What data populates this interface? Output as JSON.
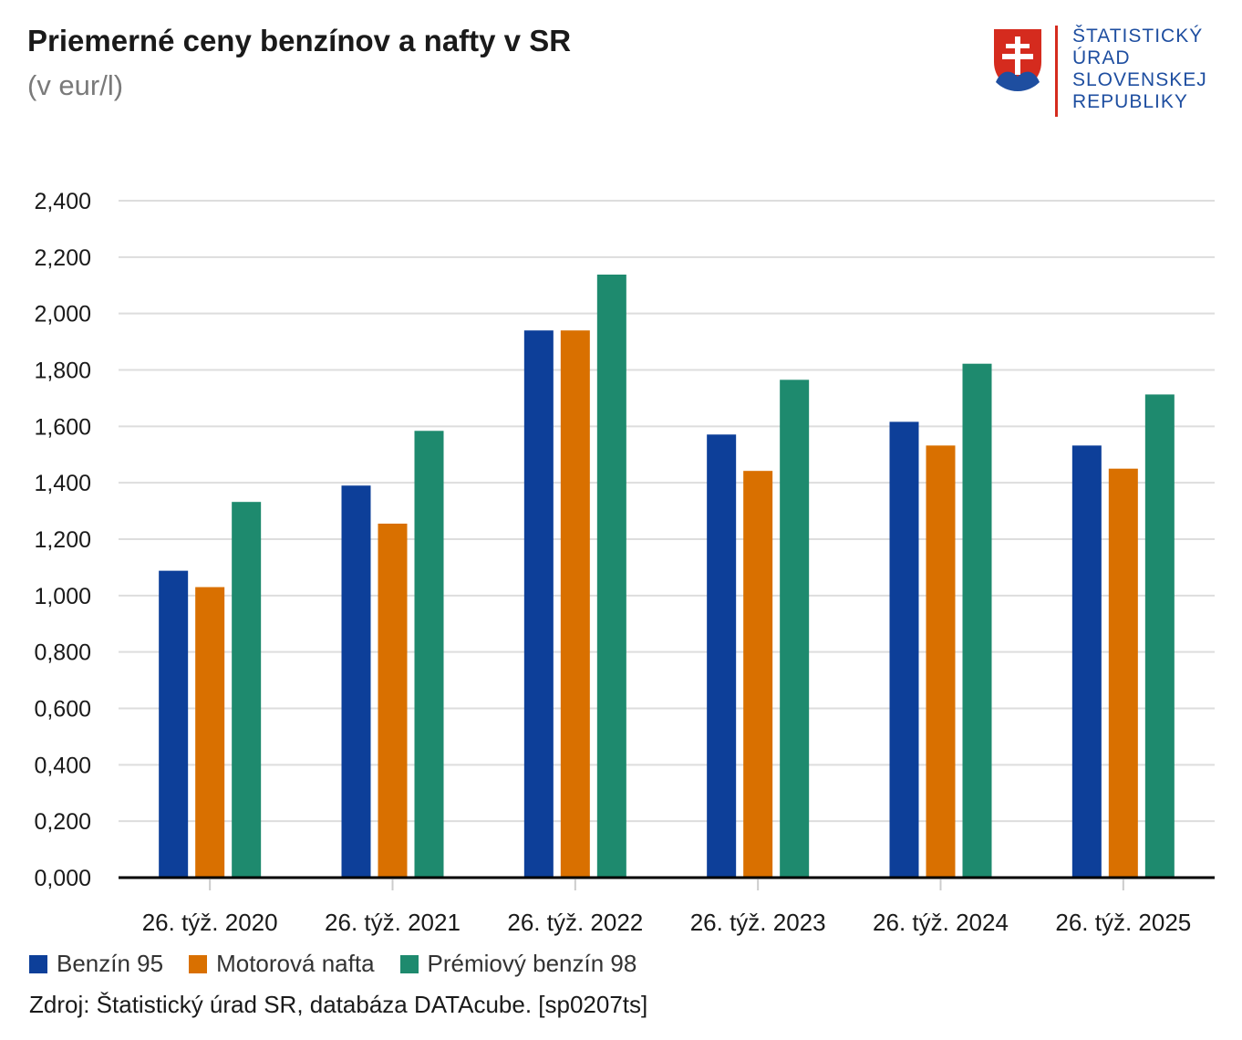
{
  "header": {
    "title": "Priemerné ceny benzínov a nafty v SR",
    "subtitle": "(v eur/l)"
  },
  "logo": {
    "lines": [
      "ŠTATISTICKÝ",
      "ÚRAD",
      "SLOVENSKEJ",
      "REPUBLIKY"
    ],
    "text_color": "#1e4ea0",
    "divider_color": "#d52b1e",
    "shield_colors": {
      "red": "#d52b1e",
      "white": "#ffffff",
      "blue": "#1e4ea0"
    }
  },
  "chart_data": {
    "type": "bar",
    "categories": [
      "26. týž. 2020",
      "26. týž. 2021",
      "26. týž. 2022",
      "26. týž. 2023",
      "26. týž. 2024",
      "26. týž. 2025"
    ],
    "series": [
      {
        "name": "Benzín 95",
        "color": "#0d3f99",
        "values": [
          1.088,
          1.39,
          1.94,
          1.571,
          1.616,
          1.532
        ]
      },
      {
        "name": "Motorová nafta",
        "color": "#d97000",
        "values": [
          1.03,
          1.255,
          1.94,
          1.442,
          1.532,
          1.45
        ]
      },
      {
        "name": "Prémiový benzín 98",
        "color": "#1e8a6e",
        "values": [
          1.332,
          1.584,
          2.138,
          1.765,
          1.822,
          1.713
        ]
      }
    ],
    "yticks": [
      "0,000",
      "0,200",
      "0,400",
      "0,600",
      "0,800",
      "1,000",
      "1,200",
      "1,400",
      "1,600",
      "1,800",
      "2,000",
      "2,200",
      "2,400"
    ],
    "ylim": [
      0,
      2.4
    ],
    "grid": true,
    "legend_position": "bottom-left"
  },
  "source": "Zdroj: Štatistický úrad SR, databáza DATAcube. [sp0207ts]"
}
